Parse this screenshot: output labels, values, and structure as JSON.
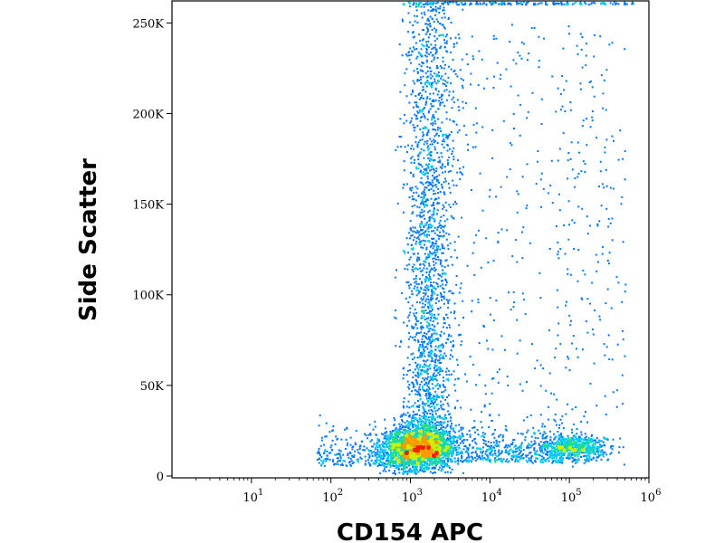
{
  "chart_data": {
    "type": "scatter",
    "plot_style": "flow cytometry density dot plot (pseudocolor)",
    "xlabel": "CD154 APC",
    "ylabel": "Side Scatter",
    "x_scale": "log",
    "xlim": [
      1,
      1000000
    ],
    "y_scale": "linear",
    "ylim": [
      0,
      262144
    ],
    "x_ticks": [
      {
        "base": "10",
        "exp": "1",
        "value": 10
      },
      {
        "base": "10",
        "exp": "2",
        "value": 100
      },
      {
        "base": "10",
        "exp": "3",
        "value": 1000
      },
      {
        "base": "10",
        "exp": "4",
        "value": 10000
      },
      {
        "base": "10",
        "exp": "5",
        "value": 100000
      },
      {
        "base": "10",
        "exp": "6",
        "value": 1000000
      }
    ],
    "y_ticks": [
      {
        "label": "0",
        "value": 0
      },
      {
        "label": "50K",
        "value": 50000
      },
      {
        "label": "100K",
        "value": 100000
      },
      {
        "label": "150K",
        "value": 150000
      },
      {
        "label": "200K",
        "value": 200000
      },
      {
        "label": "250K",
        "value": 250000
      }
    ],
    "grid": false,
    "legend": "none",
    "density_colors": [
      "#0000cc",
      "#0077ff",
      "#00ccee",
      "#22dd88",
      "#ccee00",
      "#ff9900",
      "#ee2200"
    ],
    "populations": [
      {
        "x_center": 1200,
        "y_center": 16000,
        "density": "highest"
      },
      {
        "x_center": 2500,
        "y_center": 110000,
        "density": "medium"
      },
      {
        "x_center": 100000,
        "y_center": 16000,
        "density": "medium"
      }
    ]
  }
}
